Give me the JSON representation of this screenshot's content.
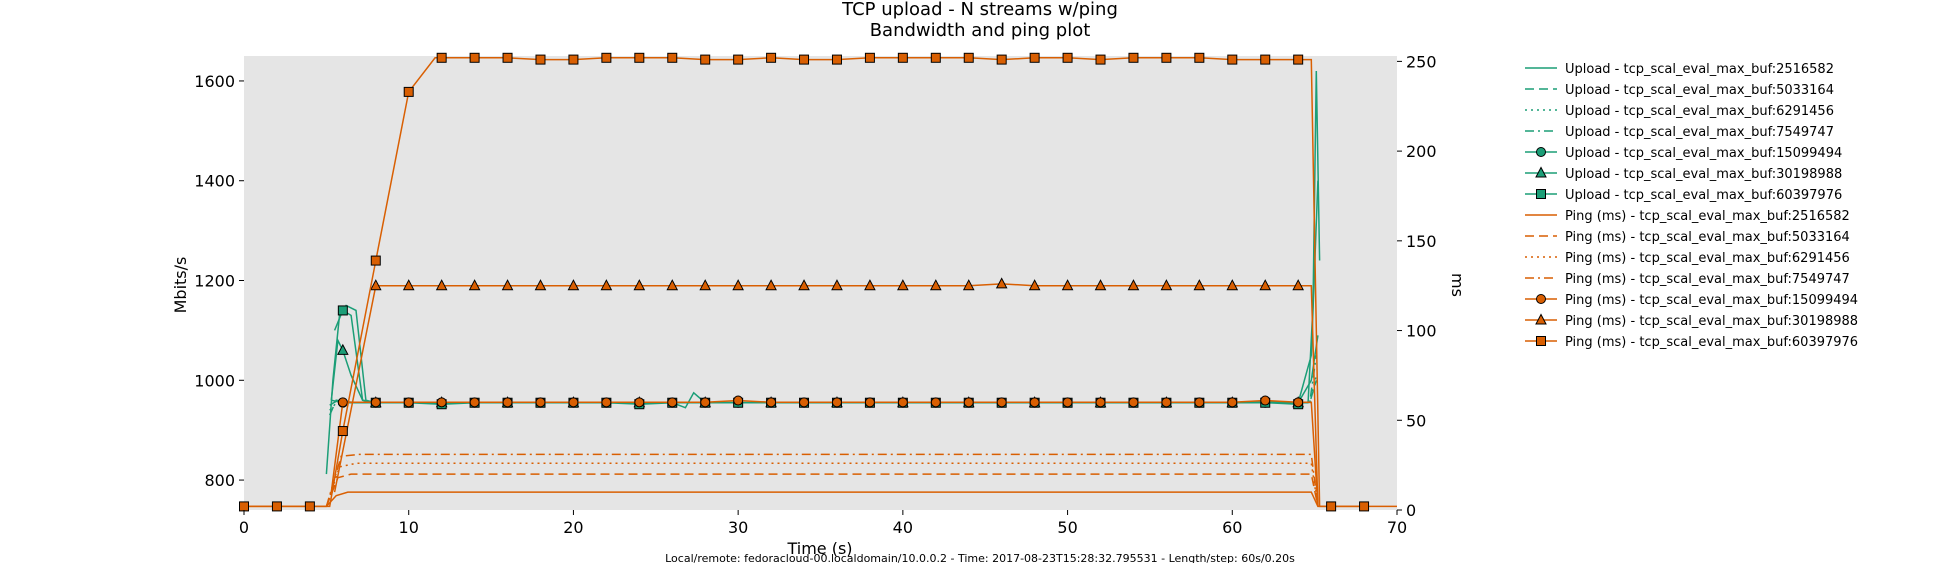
{
  "colors": {
    "upload": "#1b9e77",
    "ping": "#d95f02",
    "plot_background": "#e5e5e5"
  },
  "chart_data": {
    "type": "line",
    "title": "TCP upload - N streams w/ping",
    "subtitle": "Bandwidth and ping plot",
    "xlabel": "Time (s)",
    "ylabel": "Mbits/s",
    "y2label": "ms",
    "footer": "Local/remote: fedoracloud-00.localdomain/10.0.0.2 - Time: 2017-08-23T15:28:32.795531 - Length/step: 60s/0.20s",
    "xlim": [
      0,
      70
    ],
    "ylim": [
      740,
      1650
    ],
    "y2lim": [
      0,
      253
    ],
    "x_ticks": [
      "0",
      "10",
      "20",
      "30",
      "40",
      "50",
      "60",
      "70"
    ],
    "y_ticks": [
      "800",
      "1000",
      "1200",
      "1400",
      "1600"
    ],
    "y2_ticks": [
      "0",
      "50",
      "100",
      "150",
      "200",
      "250"
    ],
    "grid": false,
    "legend_position": "outside-right",
    "series": [
      {
        "name": "Upload - tcp_scal_eval_max_buf:2516582",
        "axis": "left",
        "color": "#1b9e77",
        "linestyle": "solid",
        "marker": "none",
        "x": [
          5.0,
          5.4,
          5.8,
          6.2,
          6.8,
          7.4,
          8,
          14,
          20,
          26,
          32,
          38,
          44,
          50,
          56,
          62,
          64.6,
          64.9,
          65.1,
          65.3
        ],
        "y": [
          812,
          1000,
          1130,
          1150,
          1140,
          960,
          955,
          956,
          955,
          956,
          955,
          955,
          956,
          955,
          955,
          956,
          956,
          1150,
          1620,
          1240
        ]
      },
      {
        "name": "Upload - tcp_scal_eval_max_buf:5033164",
        "axis": "left",
        "color": "#1b9e77",
        "linestyle": "dashed",
        "marker": "none",
        "x": [
          5.2,
          5.6,
          6.2,
          7,
          8,
          20,
          30,
          40,
          50,
          60,
          64.7,
          65.1
        ],
        "y": [
          930,
          960,
          957,
          955,
          955,
          955,
          955,
          955,
          955,
          955,
          955,
          1000
        ]
      },
      {
        "name": "Upload - tcp_scal_eval_max_buf:6291456",
        "axis": "left",
        "color": "#1b9e77",
        "linestyle": "dotted",
        "marker": "none",
        "x": [
          5.2,
          5.7,
          6.3,
          7,
          8,
          20,
          30,
          40,
          50,
          60,
          64.7,
          65.1
        ],
        "y": [
          940,
          958,
          955,
          955,
          955,
          955,
          955,
          955,
          955,
          955,
          955,
          1010
        ]
      },
      {
        "name": "Upload - tcp_scal_eval_max_buf:7549747",
        "axis": "left",
        "color": "#1b9e77",
        "linestyle": "dashdot",
        "marker": "none",
        "x": [
          5.2,
          5.7,
          6.3,
          7,
          8,
          20,
          30,
          40,
          50,
          60,
          64.7,
          65.1
        ],
        "y": [
          950,
          960,
          955,
          955,
          955,
          955,
          955,
          955,
          955,
          955,
          955,
          1050
        ]
      },
      {
        "name": "Upload - tcp_scal_eval_max_buf:15099494",
        "axis": "left",
        "color": "#1b9e77",
        "linestyle": "solid",
        "marker": "circle",
        "x": [
          5.3,
          6,
          8,
          10,
          12,
          14,
          16,
          18,
          20,
          22,
          24,
          26,
          26.8,
          27.3,
          28,
          30,
          32,
          34,
          36,
          38,
          40,
          42,
          44,
          46,
          48,
          50,
          52,
          54,
          56,
          58,
          60,
          62,
          64,
          64.8,
          65.2
        ],
        "y": [
          960,
          955,
          955,
          955,
          955,
          955,
          955,
          955,
          955,
          955,
          955,
          955,
          945,
          975,
          955,
          955,
          955,
          955,
          955,
          955,
          955,
          955,
          955,
          955,
          955,
          955,
          955,
          955,
          955,
          955,
          955,
          955,
          955,
          1000,
          1090
        ]
      },
      {
        "name": "Upload - tcp_scal_eval_max_buf:30198988",
        "axis": "left",
        "color": "#1b9e77",
        "linestyle": "solid",
        "marker": "triangle",
        "x": [
          5.3,
          5.7,
          6,
          6.5,
          7.2,
          8,
          12,
          16,
          20,
          24,
          28,
          32,
          36,
          40,
          44,
          48,
          52,
          56,
          60,
          64,
          64.8,
          65.2
        ],
        "y": [
          960,
          1080,
          1060,
          1010,
          960,
          955,
          955,
          955,
          955,
          955,
          955,
          955,
          955,
          955,
          955,
          955,
          955,
          955,
          955,
          955,
          1050,
          1400
        ]
      },
      {
        "name": "Upload - tcp_scal_eval_max_buf:60397976",
        "axis": "left",
        "color": "#1b9e77",
        "linestyle": "solid",
        "marker": "square",
        "x": [
          5.5,
          6,
          6.5,
          7.2,
          8,
          10,
          12,
          14,
          16,
          18,
          20,
          22,
          24,
          26,
          28,
          30,
          32,
          34,
          36,
          38,
          40,
          42,
          44,
          46,
          48,
          50,
          52,
          54,
          56,
          58,
          60,
          62,
          64
        ],
        "y": [
          1100,
          1140,
          1130,
          960,
          955,
          955,
          952,
          955,
          955,
          955,
          955,
          955,
          952,
          955,
          955,
          955,
          955,
          955,
          955,
          955,
          955,
          955,
          955,
          955,
          955,
          955,
          955,
          955,
          955,
          955,
          955,
          955,
          952
        ]
      },
      {
        "name": "Ping (ms) - tcp_scal_eval_max_buf:2516582",
        "axis": "right",
        "color": "#d95f02",
        "linestyle": "solid",
        "marker": "none",
        "x": [
          0,
          5,
          5.6,
          6.3,
          10,
          20,
          30,
          40,
          50,
          60,
          64.8,
          65.2,
          70
        ],
        "y": [
          2,
          2,
          8,
          10,
          10,
          10,
          10,
          10,
          10,
          10,
          10,
          2,
          2
        ]
      },
      {
        "name": "Ping (ms) - tcp_scal_eval_max_buf:5033164",
        "axis": "right",
        "color": "#d95f02",
        "linestyle": "dashed",
        "marker": "none",
        "x": [
          5,
          5.7,
          6.5,
          10,
          20,
          30,
          40,
          50,
          60,
          64.8,
          65.2
        ],
        "y": [
          2,
          18,
          20,
          20,
          20,
          20,
          20,
          20,
          20,
          20,
          2
        ]
      },
      {
        "name": "Ping (ms) - tcp_scal_eval_max_buf:6291456",
        "axis": "right",
        "color": "#d95f02",
        "linestyle": "dotted",
        "marker": "none",
        "x": [
          5,
          5.8,
          6.8,
          10,
          20,
          30,
          40,
          50,
          60,
          64.8,
          65.2
        ],
        "y": [
          2,
          24,
          26,
          26,
          26,
          26,
          26,
          26,
          26,
          26,
          2
        ]
      },
      {
        "name": "Ping (ms) - tcp_scal_eval_max_buf:7549747",
        "axis": "right",
        "color": "#d95f02",
        "linestyle": "dashdot",
        "marker": "none",
        "x": [
          5,
          5.9,
          7,
          10,
          20,
          30,
          40,
          50,
          60,
          64.8,
          65.2
        ],
        "y": [
          2,
          30,
          31,
          31,
          31,
          31,
          31,
          31,
          31,
          31,
          2
        ]
      },
      {
        "name": "Ping (ms) - tcp_scal_eval_max_buf:15099494",
        "axis": "right",
        "color": "#d95f02",
        "linestyle": "solid",
        "marker": "circle",
        "x": [
          5.3,
          6,
          8,
          10,
          12,
          14,
          16,
          18,
          20,
          22,
          24,
          26,
          28,
          30,
          32,
          34,
          36,
          38,
          40,
          42,
          44,
          46,
          48,
          50,
          52,
          54,
          56,
          58,
          60,
          62,
          64,
          64.8,
          65.2
        ],
        "y": [
          10,
          60,
          60,
          60,
          60,
          60,
          60,
          60,
          60,
          60,
          60,
          60,
          60,
          61,
          60,
          60,
          60,
          60,
          60,
          60,
          60,
          60,
          60,
          60,
          60,
          60,
          60,
          60,
          60,
          61,
          60,
          60,
          2
        ]
      },
      {
        "name": "Ping (ms) - tcp_scal_eval_max_buf:30198988",
        "axis": "right",
        "color": "#d95f02",
        "linestyle": "solid",
        "marker": "triangle",
        "x": [
          5.5,
          8,
          10,
          12,
          14,
          16,
          18,
          20,
          22,
          24,
          26,
          28,
          30,
          32,
          34,
          36,
          38,
          40,
          42,
          44,
          46,
          48,
          50,
          52,
          54,
          56,
          58,
          60,
          62,
          64,
          64.8,
          65.2
        ],
        "y": [
          10,
          125,
          125,
          125,
          125,
          125,
          125,
          125,
          125,
          125,
          125,
          125,
          125,
          125,
          125,
          125,
          125,
          125,
          125,
          125,
          126,
          125,
          125,
          125,
          125,
          125,
          125,
          125,
          125,
          125,
          125,
          2
        ]
      },
      {
        "name": "Ping (ms) - tcp_scal_eval_max_buf:60397976",
        "axis": "right",
        "color": "#d95f02",
        "linestyle": "solid",
        "marker": "square",
        "x": [
          0,
          2,
          4,
          5.2,
          6,
          8,
          10,
          11.6,
          12,
          14,
          16,
          18,
          20,
          22,
          24,
          26,
          28,
          30,
          32,
          34,
          36,
          38,
          40,
          42,
          44,
          46,
          48,
          50,
          52,
          54,
          56,
          58,
          60,
          62,
          64,
          64.8,
          65.3,
          66,
          68
        ],
        "y": [
          2,
          2,
          2,
          2,
          44,
          139,
          233,
          252,
          252,
          252,
          252,
          251,
          251,
          252,
          252,
          252,
          251,
          251,
          252,
          251,
          251,
          252,
          252,
          252,
          252,
          251,
          252,
          252,
          251,
          252,
          252,
          252,
          251,
          251,
          251,
          251,
          2,
          2,
          2
        ]
      }
    ]
  }
}
